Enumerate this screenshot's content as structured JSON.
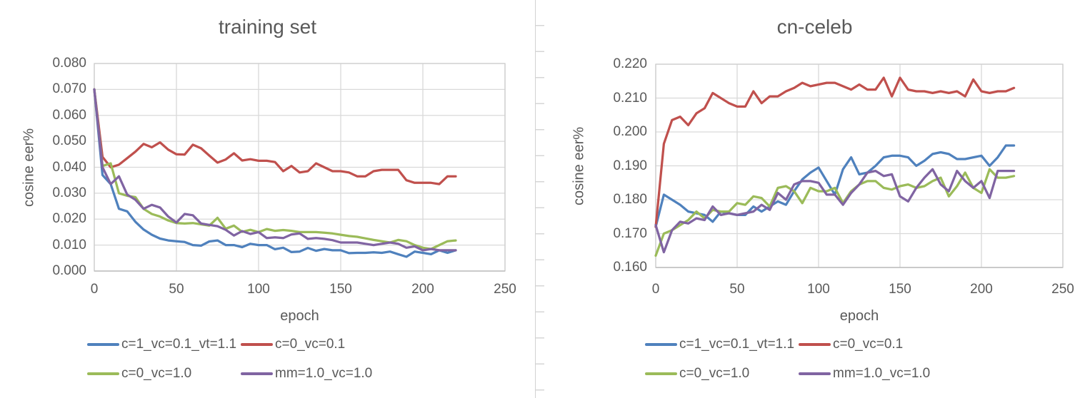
{
  "chart_data": [
    {
      "type": "line",
      "title": "training set",
      "xlabel": "epoch",
      "ylabel": "cosine eer%",
      "xlim": [
        0,
        250
      ],
      "ylim": [
        0.0,
        0.08
      ],
      "grid": true,
      "legend_position": "bottom",
      "x_ticks": [
        "0",
        "50",
        "100",
        "150",
        "200",
        "250"
      ],
      "y_ticks": [
        "0.080",
        "0.070",
        "0.060",
        "0.050",
        "0.040",
        "0.030",
        "0.020",
        "0.010",
        "0.000"
      ],
      "x": [
        0,
        5,
        10,
        15,
        20,
        25,
        30,
        35,
        40,
        45,
        50,
        55,
        60,
        65,
        70,
        75,
        80,
        85,
        90,
        95,
        100,
        105,
        110,
        115,
        120,
        125,
        130,
        135,
        140,
        145,
        150,
        155,
        160,
        165,
        170,
        175,
        180,
        185,
        190,
        195,
        200,
        205,
        210,
        215,
        220
      ],
      "series": [
        {
          "name": "c=1_vc=0.1_vt=1.1",
          "color": "#4F81BD",
          "values": [
            0.07,
            0.037,
            0.0335,
            0.024,
            0.023,
            0.019,
            0.016,
            0.014,
            0.0125,
            0.0118,
            0.0115,
            0.0112,
            0.01,
            0.0098,
            0.0114,
            0.0118,
            0.01,
            0.01,
            0.0092,
            0.0105,
            0.01,
            0.01,
            0.0084,
            0.009,
            0.0073,
            0.0075,
            0.0089,
            0.0078,
            0.0085,
            0.008,
            0.008,
            0.0069,
            0.007,
            0.007,
            0.0072,
            0.007,
            0.0075,
            0.0065,
            0.0055,
            0.0075,
            0.007,
            0.0065,
            0.008,
            0.007,
            0.008
          ]
        },
        {
          "name": "c=0_vc=0.1",
          "color": "#C0504D",
          "values": [
            0.07,
            0.044,
            0.04,
            0.041,
            0.0435,
            0.046,
            0.049,
            0.0477,
            0.0496,
            0.0468,
            0.045,
            0.0449,
            0.0487,
            0.0473,
            0.0445,
            0.0418,
            0.043,
            0.0454,
            0.0426,
            0.0431,
            0.0425,
            0.0425,
            0.042,
            0.0385,
            0.0405,
            0.038,
            0.0385,
            0.0415,
            0.04,
            0.0385,
            0.0385,
            0.038,
            0.0365,
            0.0365,
            0.0385,
            0.039,
            0.039,
            0.039,
            0.035,
            0.034,
            0.034,
            0.034,
            0.0335,
            0.0365,
            0.0365
          ]
        },
        {
          "name": "c=0_vc=1.0",
          "color": "#9BBB59",
          "values": [
            0.07,
            0.0405,
            0.0415,
            0.03,
            0.029,
            0.0285,
            0.024,
            0.022,
            0.021,
            0.0195,
            0.0185,
            0.0183,
            0.0185,
            0.018,
            0.0175,
            0.0205,
            0.0163,
            0.0175,
            0.0151,
            0.0159,
            0.015,
            0.0162,
            0.0155,
            0.0158,
            0.0155,
            0.015,
            0.015,
            0.015,
            0.0148,
            0.0145,
            0.014,
            0.0135,
            0.0132,
            0.0126,
            0.012,
            0.0115,
            0.011,
            0.012,
            0.0115,
            0.01,
            0.009,
            0.0085,
            0.01,
            0.0115,
            0.0118
          ]
        },
        {
          "name": "mm=1.0_vc=1.0",
          "color": "#8064A2",
          "values": [
            0.07,
            0.04,
            0.0335,
            0.0365,
            0.0295,
            0.0275,
            0.024,
            0.0255,
            0.0245,
            0.021,
            0.0187,
            0.022,
            0.0215,
            0.0183,
            0.0178,
            0.0173,
            0.0159,
            0.0137,
            0.0154,
            0.0143,
            0.015,
            0.0127,
            0.013,
            0.0127,
            0.0141,
            0.0145,
            0.0124,
            0.0127,
            0.0124,
            0.0119,
            0.011,
            0.011,
            0.011,
            0.0105,
            0.01,
            0.0105,
            0.011,
            0.0105,
            0.009,
            0.0095,
            0.008,
            0.0085,
            0.008,
            0.008,
            0.008
          ]
        }
      ]
    },
    {
      "type": "line",
      "title": "cn-celeb",
      "xlabel": "epoch",
      "ylabel": "cosine eer%",
      "xlim": [
        0,
        250
      ],
      "ylim": [
        0.16,
        0.22
      ],
      "grid": true,
      "legend_position": "bottom",
      "x_ticks": [
        "0",
        "50",
        "100",
        "150",
        "200",
        "250"
      ],
      "y_ticks": [
        "0.220",
        "0.210",
        "0.200",
        "0.190",
        "0.180",
        "0.170",
        "0.160"
      ],
      "x": [
        0,
        5,
        10,
        15,
        20,
        25,
        30,
        35,
        40,
        45,
        50,
        55,
        60,
        65,
        70,
        75,
        80,
        85,
        90,
        95,
        100,
        105,
        110,
        115,
        120,
        125,
        130,
        135,
        140,
        145,
        150,
        155,
        160,
        165,
        170,
        175,
        180,
        185,
        190,
        195,
        200,
        205,
        210,
        215,
        220
      ],
      "series": [
        {
          "name": "c=1_vc=0.1_vt=1.1",
          "color": "#4F81BD",
          "values": [
            0.172,
            0.1815,
            0.18,
            0.1785,
            0.1765,
            0.176,
            0.1755,
            0.1735,
            0.1765,
            0.176,
            0.1755,
            0.1755,
            0.178,
            0.1765,
            0.178,
            0.1795,
            0.1785,
            0.1825,
            0.186,
            0.188,
            0.1895,
            0.1855,
            0.1815,
            0.189,
            0.1925,
            0.1875,
            0.188,
            0.19,
            0.1925,
            0.193,
            0.193,
            0.1925,
            0.19,
            0.1915,
            0.1935,
            0.194,
            0.1935,
            0.192,
            0.192,
            0.1925,
            0.193,
            0.19,
            0.1925,
            0.196,
            0.196
          ]
        },
        {
          "name": "c=0_vc=0.1",
          "color": "#C0504D",
          "values": [
            0.172,
            0.1965,
            0.2035,
            0.2045,
            0.202,
            0.2055,
            0.207,
            0.2115,
            0.21,
            0.2085,
            0.2075,
            0.2075,
            0.212,
            0.2085,
            0.2105,
            0.2105,
            0.212,
            0.213,
            0.2145,
            0.2135,
            0.214,
            0.2145,
            0.2145,
            0.2135,
            0.2125,
            0.214,
            0.2125,
            0.2125,
            0.216,
            0.2105,
            0.216,
            0.2125,
            0.212,
            0.212,
            0.2115,
            0.212,
            0.2115,
            0.212,
            0.2105,
            0.2155,
            0.212,
            0.2115,
            0.212,
            0.212,
            0.213
          ]
        },
        {
          "name": "c=0_vc=1.0",
          "color": "#9BBB59",
          "values": [
            0.1635,
            0.17,
            0.171,
            0.1725,
            0.174,
            0.1765,
            0.1745,
            0.177,
            0.1765,
            0.1765,
            0.179,
            0.1785,
            0.181,
            0.1805,
            0.178,
            0.1835,
            0.184,
            0.1825,
            0.179,
            0.1835,
            0.1825,
            0.1825,
            0.1835,
            0.179,
            0.1825,
            0.1845,
            0.1855,
            0.1855,
            0.1835,
            0.183,
            0.184,
            0.1845,
            0.1835,
            0.184,
            0.1855,
            0.1865,
            0.181,
            0.184,
            0.188,
            0.1835,
            0.182,
            0.189,
            0.1865,
            0.1865,
            0.187
          ]
        },
        {
          "name": "mm=1.0_vc=1.0",
          "color": "#8064A2",
          "values": [
            0.1725,
            0.1645,
            0.171,
            0.1735,
            0.173,
            0.1745,
            0.174,
            0.178,
            0.1755,
            0.176,
            0.1755,
            0.176,
            0.1765,
            0.1785,
            0.177,
            0.182,
            0.18,
            0.1845,
            0.1855,
            0.1855,
            0.185,
            0.1815,
            0.1815,
            0.1785,
            0.182,
            0.1845,
            0.188,
            0.1885,
            0.187,
            0.1875,
            0.181,
            0.1795,
            0.1835,
            0.1865,
            0.189,
            0.1845,
            0.1825,
            0.1885,
            0.1855,
            0.1835,
            0.1855,
            0.1805,
            0.1885,
            0.1885,
            0.1885
          ]
        }
      ]
    }
  ]
}
